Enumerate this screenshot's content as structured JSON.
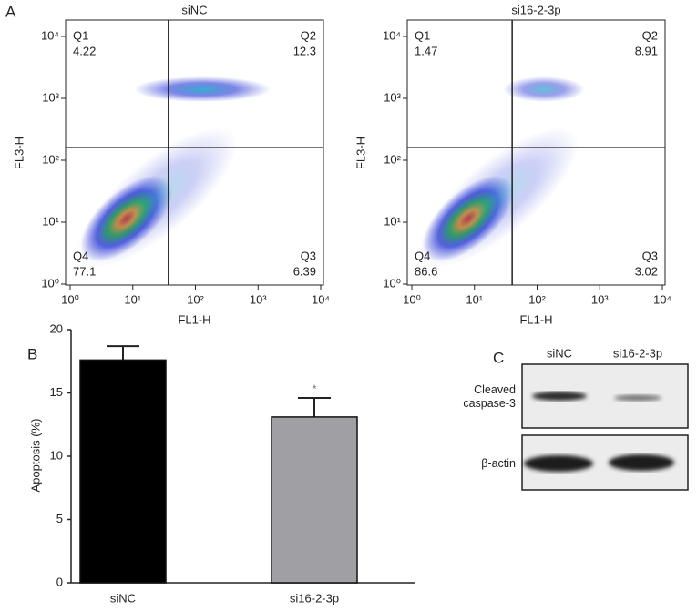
{
  "chart_data": [
    {
      "type": "flow",
      "panel_label": "A",
      "title": "siNC",
      "xlabel": "FL1-H",
      "ylabel": "FL3-H",
      "log_scale": true,
      "xlim": [
        1,
        10000
      ],
      "ylim": [
        1,
        10000
      ],
      "xticks": [
        {
          "value": 1,
          "label": "10⁰"
        },
        {
          "value": 10,
          "label": "10¹"
        },
        {
          "value": 100,
          "label": "10²"
        },
        {
          "value": 1000,
          "label": "10³"
        },
        {
          "value": 10000,
          "label": "10⁴"
        }
      ],
      "yticks": [
        {
          "value": 1,
          "label": "10⁰"
        },
        {
          "value": 10,
          "label": "10¹"
        },
        {
          "value": 100,
          "label": "10²"
        },
        {
          "value": 1000,
          "label": "10³"
        },
        {
          "value": 10000,
          "label": "10⁴"
        }
      ],
      "gate": {
        "x": 37,
        "y": 160
      },
      "quadrants": [
        {
          "name": "Q1",
          "value": 4.22
        },
        {
          "name": "Q2",
          "value": 12.3
        },
        {
          "name": "Q3",
          "value": 6.39
        },
        {
          "name": "Q4",
          "value": 77.1
        }
      ]
    },
    {
      "type": "flow",
      "title": "si16-2-3p",
      "xlabel": "FL1-H",
      "ylabel": "FL3-H",
      "log_scale": true,
      "xlim": [
        1,
        10000
      ],
      "ylim": [
        1,
        10000
      ],
      "xticks": [
        {
          "value": 1,
          "label": "10⁰"
        },
        {
          "value": 10,
          "label": "10¹"
        },
        {
          "value": 100,
          "label": "10²"
        },
        {
          "value": 1000,
          "label": "10³"
        },
        {
          "value": 10000,
          "label": "10⁴"
        }
      ],
      "yticks": [
        {
          "value": 1,
          "label": "10⁰"
        },
        {
          "value": 10,
          "label": "10¹"
        },
        {
          "value": 100,
          "label": "10²"
        },
        {
          "value": 1000,
          "label": "10³"
        },
        {
          "value": 10000,
          "label": "10⁴"
        }
      ],
      "gate": {
        "x": 40,
        "y": 160
      },
      "quadrants": [
        {
          "name": "Q1",
          "value": 1.47
        },
        {
          "name": "Q2",
          "value": 8.91
        },
        {
          "name": "Q3",
          "value": 3.02
        },
        {
          "name": "Q4",
          "value": 86.6
        }
      ]
    },
    {
      "type": "bar",
      "panel_label": "B",
      "ylabel": "Apoptosis (%)",
      "categories": [
        "siNC",
        "si16-2-3p"
      ],
      "values": [
        17.6,
        13.1
      ],
      "errors": [
        1.1,
        1.5
      ],
      "colors": [
        "#000000",
        "#a0a0a4"
      ],
      "ylim": [
        0,
        20
      ],
      "yticks": [
        0,
        5,
        10,
        15,
        20
      ],
      "significance": [
        null,
        "*"
      ]
    },
    {
      "type": "blot",
      "panel_label": "C",
      "lanes": [
        "siNC",
        "si16-2-3p"
      ],
      "rows": [
        "Cleaved caspase-3",
        "β-actin"
      ]
    }
  ]
}
